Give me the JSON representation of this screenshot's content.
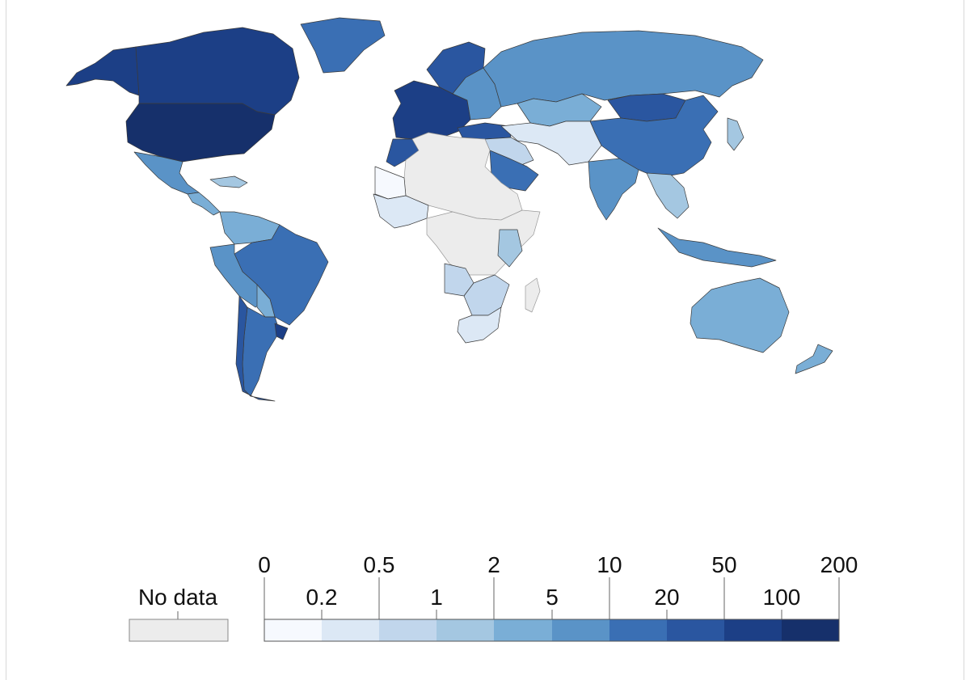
{
  "colors": {
    "no_data": "#ececec",
    "bins": [
      "#f6f9fe",
      "#dce8f5",
      "#c1d6ec",
      "#a4c7e1",
      "#7aaed6",
      "#5a93c7",
      "#3a6fb4",
      "#2a56a0",
      "#1c3f86",
      "#16306b"
    ]
  },
  "legend": {
    "no_data_label": "No data",
    "ticks_top": [
      "0",
      "0.5",
      "2",
      "10",
      "50",
      "200"
    ],
    "ticks_bottom": [
      "0.2",
      "1",
      "5",
      "20",
      "100"
    ]
  },
  "regions": [
    {
      "name": "canada",
      "bin": 8
    },
    {
      "name": "alaska",
      "bin": 8
    },
    {
      "name": "greenland",
      "bin": 6
    },
    {
      "name": "usa",
      "bin": 9
    },
    {
      "name": "mexico",
      "bin": 5
    },
    {
      "name": "central-america",
      "bin": 4
    },
    {
      "name": "caribbean",
      "bin": 3
    },
    {
      "name": "colombia-venezuela",
      "bin": 4
    },
    {
      "name": "brazil",
      "bin": 6
    },
    {
      "name": "peru-bolivia",
      "bin": 5
    },
    {
      "name": "paraguay",
      "bin": 4
    },
    {
      "name": "argentina",
      "bin": 6
    },
    {
      "name": "chile",
      "bin": 7
    },
    {
      "name": "uruguay",
      "bin": 8
    },
    {
      "name": "western-europe",
      "bin": 8
    },
    {
      "name": "scandinavia",
      "bin": 7
    },
    {
      "name": "eastern-europe",
      "bin": 5
    },
    {
      "name": "turkey",
      "bin": 7
    },
    {
      "name": "russia",
      "bin": 5
    },
    {
      "name": "kazakhstan",
      "bin": 4
    },
    {
      "name": "central-asia",
      "bin": 1
    },
    {
      "name": "middle-east",
      "bin": 2
    },
    {
      "name": "saudi-arabia",
      "bin": 6
    },
    {
      "name": "india",
      "bin": 5
    },
    {
      "name": "china",
      "bin": 6
    },
    {
      "name": "mongolia",
      "bin": 7
    },
    {
      "name": "southeast-asia",
      "bin": 3
    },
    {
      "name": "indonesia",
      "bin": 5
    },
    {
      "name": "japan",
      "bin": 3
    },
    {
      "name": "australia",
      "bin": 4
    },
    {
      "name": "new-zealand",
      "bin": 4
    },
    {
      "name": "morocco",
      "bin": 7
    },
    {
      "name": "north-africa",
      "bin": -1
    },
    {
      "name": "sahel",
      "bin": 0
    },
    {
      "name": "west-africa",
      "bin": 1
    },
    {
      "name": "central-africa",
      "bin": -1
    },
    {
      "name": "east-africa",
      "bin": 3
    },
    {
      "name": "angola",
      "bin": 2
    },
    {
      "name": "southern-africa",
      "bin": 2
    },
    {
      "name": "south-africa",
      "bin": 1
    },
    {
      "name": "madagascar",
      "bin": -1
    }
  ]
}
